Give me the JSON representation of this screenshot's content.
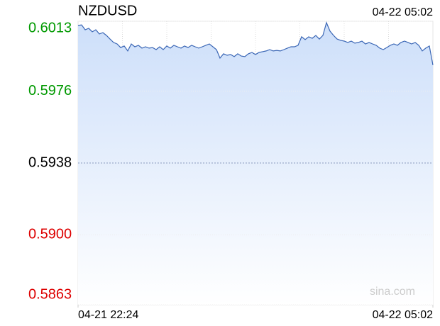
{
  "chart_data": {
    "type": "line",
    "title": "NZDUSD",
    "time": "04-22 05:02",
    "watermark": "sina.com",
    "values": [
      0.60108,
      0.60111,
      0.60085,
      0.60093,
      0.60074,
      0.60085,
      0.60063,
      0.6007,
      0.60055,
      0.60036,
      0.60018,
      0.6001,
      0.59991,
      0.59999,
      0.59973,
      0.6001,
      0.59995,
      0.60003,
      0.59988,
      0.59995,
      0.59988,
      0.59991,
      0.5998,
      0.59995,
      0.5998,
      0.59999,
      0.59988,
      0.60003,
      0.59995,
      0.59988,
      0.59999,
      0.59991,
      0.60003,
      0.59995,
      0.59988,
      0.59995,
      0.60003,
      0.6001,
      0.59995,
      0.5998,
      0.59935,
      0.59958,
      0.5995,
      0.59954,
      0.59943,
      0.59958,
      0.59946,
      0.59943,
      0.59958,
      0.59965,
      0.59954,
      0.59965,
      0.59969,
      0.59973,
      0.5998,
      0.59973,
      0.59976,
      0.59973,
      0.5998,
      0.59988,
      0.59995,
      0.59995,
      0.60003,
      0.60048,
      0.60033,
      0.60048,
      0.6004,
      0.60055,
      0.60036,
      0.60055,
      0.60123,
      0.60078,
      0.60055,
      0.60036,
      0.60029,
      0.60025,
      0.60018,
      0.60025,
      0.60014,
      0.60018,
      0.60025,
      0.6001,
      0.60018,
      0.6001,
      0.60003,
      0.59988,
      0.5998,
      0.59991,
      0.60003,
      0.6001,
      0.60003,
      0.60018,
      0.60025,
      0.60018,
      0.6001,
      0.60018,
      0.60003,
      0.59973,
      0.59988,
      0.59999,
      0.59898
    ],
    "color": "#3a66b5",
    "fill_top": "#cddffa",
    "up_color": "#009900",
    "down_color": "#dd0000",
    "xlim": [
      0,
      100
    ],
    "xticks": [
      {
        "value": 0,
        "label": "04-21 22:24"
      },
      {
        "value": 100,
        "label": "04-22 05:02"
      }
    ],
    "ylim": [
      0.5863,
      0.6013
    ],
    "yticks": [
      0.6013,
      0.5976,
      0.5938,
      {
        "value": 0.59,
        "label": "0.5900"
      },
      0.5863
    ],
    "grid": true
  }
}
